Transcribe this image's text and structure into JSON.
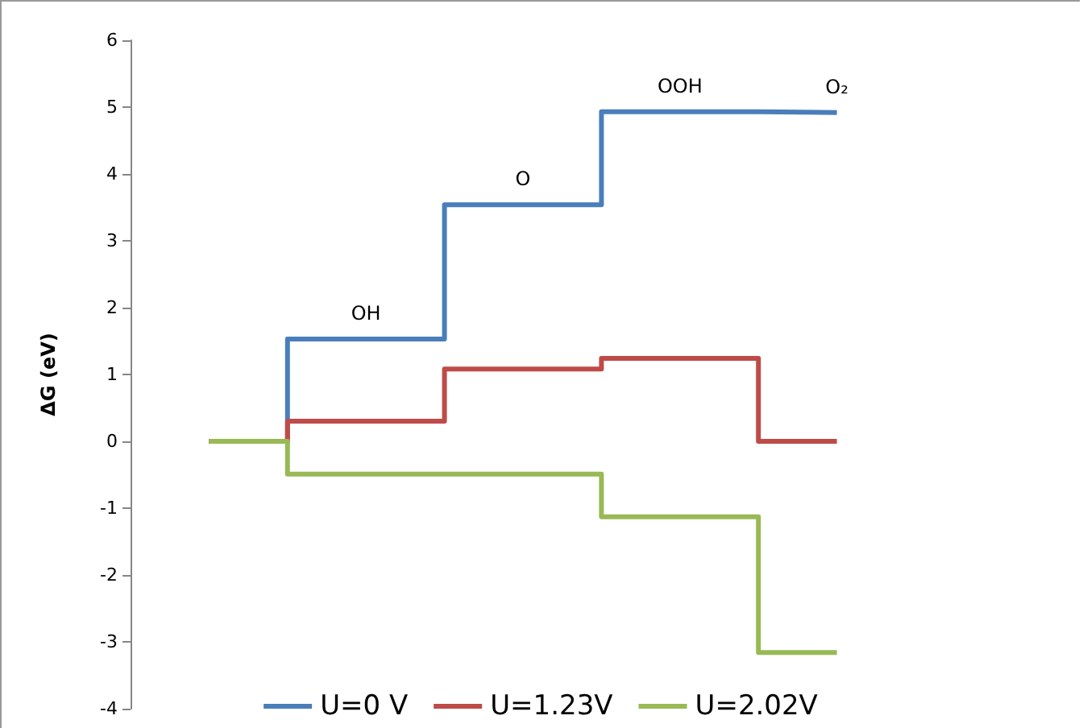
{
  "chart_data": {
    "type": "step",
    "ylabel": "ΔG (eV)",
    "categories": [
      null,
      null,
      null,
      null,
      null
    ],
    "series": [
      {
        "name": "U=0 V",
        "color": "#4a7ebb",
        "values": [
          0,
          1.53,
          3.54,
          4.93,
          4.92
        ]
      },
      {
        "name": "U=1.23V",
        "color": "#be4b48",
        "values": [
          0,
          0.3,
          1.08,
          1.24,
          0
        ]
      },
      {
        "name": "U=2.02V",
        "color": "#98b954",
        "values": [
          0,
          -0.49,
          -0.49,
          -1.13,
          -3.16
        ]
      }
    ],
    "annotations": [
      {
        "text": "OH",
        "y": 1.53
      },
      {
        "text": "O",
        "y": 3.54
      },
      {
        "text": "OOH",
        "y": 4.93
      },
      {
        "text": "O₂",
        "y": 4.92
      }
    ],
    "ylim": [
      -4,
      6
    ],
    "yticks": [
      -4,
      -3,
      -2,
      -1,
      0,
      1,
      2,
      3,
      4,
      5,
      6
    ],
    "grid": false,
    "legend": "bottom"
  }
}
